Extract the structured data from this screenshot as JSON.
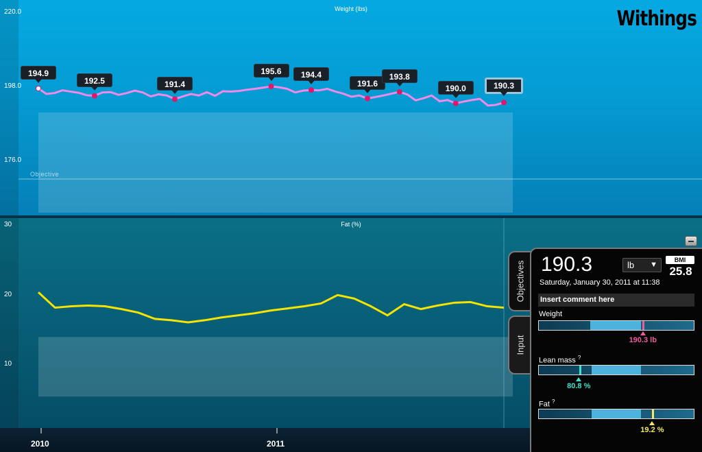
{
  "brand": "Withings",
  "colors": {
    "weight_line": "#f08ae8",
    "weight_points": "#e0186b",
    "fat_line": "#f4e400",
    "weight_marker": "#f05a9e",
    "lean_marker": "#3fe0c8",
    "fat_marker": "#f2ea6a"
  },
  "weight_chart": {
    "title": "Weight (lbs)",
    "y_ticks": [
      "220.0",
      "198.0",
      "176.0"
    ],
    "objective_label": "Objective",
    "annotations": [
      "194.9",
      "192.5",
      "191.4",
      "195.6",
      "194.4",
      "191.6",
      "193.8",
      "190.0",
      "190.3"
    ]
  },
  "fat_chart": {
    "title": "Fat (%)",
    "y_ticks": [
      "30",
      "20",
      "10"
    ]
  },
  "x_axis": [
    "2010",
    "2011"
  ],
  "chart_data": [
    {
      "type": "line",
      "title": "Weight (lbs)",
      "x_axis_labels": [
        "2010",
        "2011"
      ],
      "ylim": [
        154,
        220
      ],
      "y_ticks": [
        220.0,
        198.0,
        176.0
      ],
      "objective_band": [
        154,
        187
      ],
      "series": [
        {
          "values": [
            194.9,
            193.1,
            193.4,
            194.3,
            193.9,
            193.5,
            192.7,
            192.5,
            193.6,
            193.7,
            192.8,
            193.4,
            194.2,
            193.6,
            192.3,
            193.0,
            192.6,
            191.4,
            192.3,
            193.1,
            192.6,
            193.7,
            192.5,
            194.0,
            193.9,
            194.1,
            194.5,
            194.8,
            195.2,
            195.6,
            195.3,
            194.8,
            193.6,
            194.2,
            194.4,
            194.3,
            194.8,
            193.9,
            193.2,
            192.2,
            192.6,
            191.6,
            192.1,
            192.6,
            193.2,
            193.8,
            192.9,
            191.0,
            191.7,
            192.6,
            190.7,
            191.1,
            190.0,
            190.6,
            191.1,
            191.5,
            189.3,
            189.5,
            190.3
          ]
        }
      ],
      "labelled_points": [
        194.9,
        192.5,
        191.4,
        195.6,
        194.4,
        191.6,
        193.8,
        190.0,
        190.3
      ]
    },
    {
      "type": "line",
      "title": "Fat (%)",
      "x_axis_labels": [
        "2010",
        "2011"
      ],
      "ylim": [
        2,
        32
      ],
      "y_ticks": [
        30,
        20,
        10
      ],
      "objective_band": [
        6.5,
        15
      ],
      "series": [
        {
          "values": [
            21.4,
            19.2,
            19.4,
            19.5,
            19.4,
            19.0,
            18.5,
            17.6,
            17.4,
            17.1,
            17.4,
            17.8,
            18.1,
            18.4,
            18.8,
            19.1,
            19.4,
            19.8,
            21.0,
            20.5,
            19.4,
            18.1,
            19.7,
            19.0,
            19.5,
            19.9,
            20.0,
            19.4,
            19.2
          ]
        }
      ]
    }
  ],
  "tabs": {
    "objectives": "Objectives",
    "input": "Input"
  },
  "detail": {
    "weight_value": "190.3",
    "unit": "lb",
    "bmi_label": "BMI",
    "bmi_value": "25.8",
    "date": "Saturday, January 30, 2011 at 11:38",
    "comment_placeholder": "Insert comment here",
    "metrics": {
      "weight": {
        "label": "Weight",
        "value": "190.3 lb",
        "position": 0.67,
        "ok_range": [
          0.33,
          0.66
        ]
      },
      "lean": {
        "label": "Lean mass",
        "help": "?",
        "value": "80.8",
        "unit": "%",
        "position": 0.26,
        "ok_range": [
          0.34,
          0.66
        ]
      },
      "fat": {
        "label": "Fat",
        "help": "?",
        "value": "19.2",
        "unit": "%",
        "position": 0.73,
        "ok_range": [
          0.34,
          0.66
        ]
      }
    }
  }
}
